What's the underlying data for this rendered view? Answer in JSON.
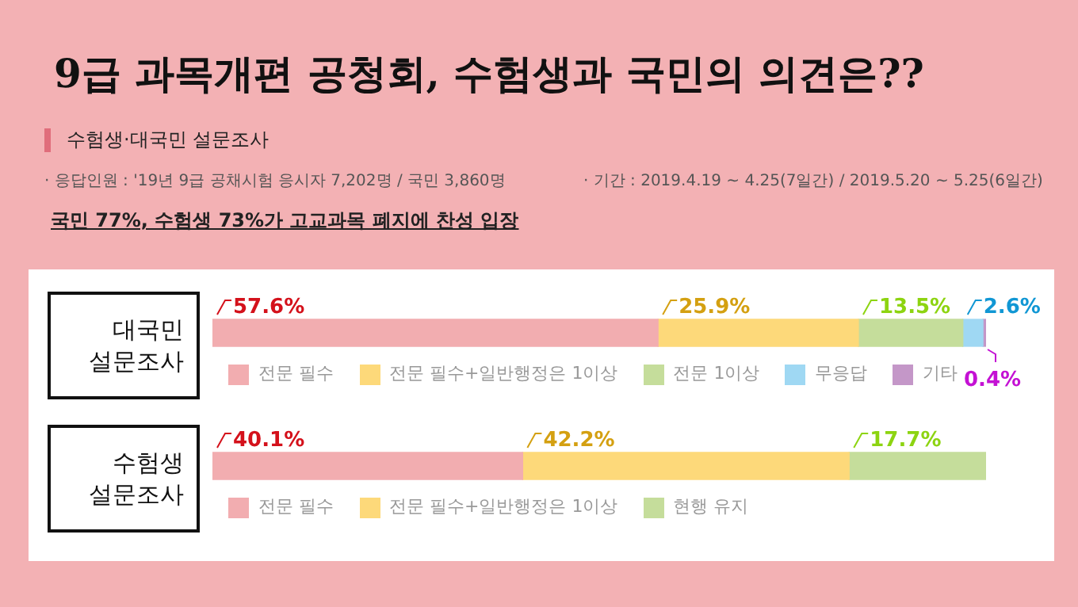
{
  "chart_data": [
    {
      "type": "bar",
      "orientation": "horizontal",
      "stacked": true,
      "title": "9급 과목개편 공청회, 수험생과 국민의 의견은??",
      "subtitle": "수험생·대국민 설문조사",
      "annotations": [
        "· 응답인원 : '19년 9급 공채시험 응시자 7,202명 / 국민 3,860명",
        "· 기간 : 2019.4.19 ~ 4.25(7일간) / 2019.5.20 ~ 5.25(6일간)",
        "국민 77%, 수험생 73%가 고교과목 폐지에 찬성 입장"
      ],
      "categories": [
        "대국민 설문조사"
      ],
      "xlim": [
        0,
        100
      ],
      "tick_labels": "y",
      "legend": "bottom",
      "series": [
        {
          "name": "전문 필수",
          "color": "#f2adb0",
          "values": [
            57.6
          ],
          "value_labels": [
            "57.6%"
          ]
        },
        {
          "name": "전문 필수+일반행정은 1이상",
          "color": "#fdd97a",
          "values": [
            25.9
          ],
          "value_labels": [
            "25.9%"
          ]
        },
        {
          "name": "전문 1이상",
          "color": "#c5dd9b",
          "values": [
            13.5
          ],
          "value_labels": [
            "13.5%"
          ]
        },
        {
          "name": "무응답",
          "color": "#9fd8f3",
          "values": [
            2.6
          ],
          "value_labels": [
            "2.6%"
          ]
        },
        {
          "name": "기타",
          "color": "#c497c8",
          "values": [
            0.4
          ],
          "value_labels": [
            "0.4%"
          ]
        }
      ]
    },
    {
      "type": "bar",
      "orientation": "horizontal",
      "stacked": true,
      "categories": [
        "수험생 설문조사"
      ],
      "xlim": [
        0,
        100
      ],
      "tick_labels": "y",
      "legend": "bottom",
      "series": [
        {
          "name": "전문 필수",
          "color": "#f2adb0",
          "values": [
            40.1
          ],
          "value_labels": [
            "40.1%"
          ]
        },
        {
          "name": "전문 필수+일반행정은 1이상",
          "color": "#fdd97a",
          "values": [
            42.2
          ],
          "value_labels": [
            "42.2%"
          ]
        },
        {
          "name": "현행 유지",
          "color": "#c5dd9b",
          "values": [
            17.7
          ],
          "value_labels": [
            "17.7%"
          ]
        }
      ]
    }
  ]
}
